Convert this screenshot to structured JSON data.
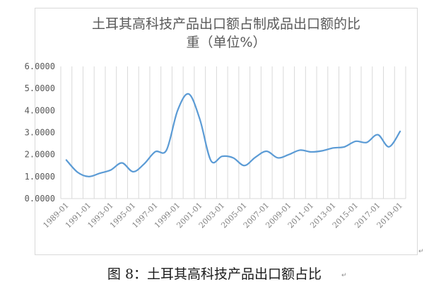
{
  "chart_data": {
    "type": "line",
    "title_line1": "土耳其高科技产品出口额占制成品出口额的比",
    "title_line2": "重（单位%）",
    "xlabel": "",
    "ylabel": "",
    "ylim": [
      0,
      6
    ],
    "y_ticks": [
      "0.0000",
      "1.0000",
      "2.0000",
      "3.0000",
      "4.0000",
      "5.0000",
      "6.0000"
    ],
    "x_ticks": [
      "1989-01",
      "1991-01",
      "1993-01",
      "1995-01",
      "1997-01",
      "1999-01",
      "2001-01",
      "2003-01",
      "2005-01",
      "2007-01",
      "2009-01",
      "2011-01",
      "2013-01",
      "2015-01",
      "2017-01",
      "2019-01"
    ],
    "grid": "vertical",
    "legend": "none",
    "series": [
      {
        "color": "#5b9bd5",
        "x": [
          1989,
          1990,
          1991,
          1992,
          1993,
          1994,
          1995,
          1996,
          1997,
          1998,
          1999,
          2000,
          2001,
          2002,
          2003,
          2004,
          2005,
          2006,
          2007,
          2008,
          2009,
          2010,
          2011,
          2012,
          2013,
          2014,
          2015,
          2016,
          2017,
          2018,
          2019
        ],
        "values": [
          1.75,
          1.2,
          1.0,
          1.15,
          1.3,
          1.62,
          1.22,
          1.58,
          2.13,
          2.2,
          4.0,
          4.75,
          3.6,
          1.72,
          1.92,
          1.85,
          1.5,
          1.88,
          2.15,
          1.85,
          2.0,
          2.2,
          2.12,
          2.17,
          2.3,
          2.35,
          2.6,
          2.55,
          2.9,
          2.35,
          3.05
        ]
      }
    ]
  },
  "caption": "图 8：土耳其高科技产品出口额占比",
  "para_mark": "↵"
}
